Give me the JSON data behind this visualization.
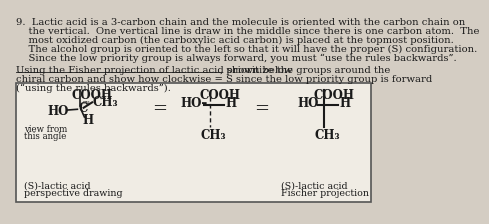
{
  "background_color": "#d4cdc3",
  "box_color": "#f0ece4",
  "text_color": "#1a1a1a",
  "fontsize_body": 7.2,
  "fontsize_mol": 8.5,
  "fontsize_label": 6.8,
  "p1_lines": [
    "9.  Lactic acid is a 3-carbon chain and the molecule is oriented with the carbon chain on",
    "    the vertical.  One vertical line is draw in the middle since there is one carbon atom.  The",
    "    most oxidized carbon (the carboxylic acid carbon) is placed at the topmost position.",
    "    The alcohol group is oriented to the left so that it will have the proper (S) configuration.",
    "    Since the low priority group is always forward, you must “use the rules backwards”."
  ],
  "p2_underlined": "Using the Fisher projection of lactic acid shown below",
  "p2_rest_line1": ", prioritize the groups around the",
  "p2_line2": "chiral carbon and show how clockwise = S since the low priority group is forward",
  "p2_line3": "(“using the rules backwards”).",
  "mol1_cooh": "COOH",
  "mol1_ho": "HO",
  "mol1_ch3": "CH₃",
  "mol1_h": "H",
  "mol1_c": "C",
  "mol1_label1": "(S)-lactic acid",
  "mol1_label2": "perspective drawing",
  "mol1_view1": "view from",
  "mol1_view2": "this angle",
  "mol2_cooh": "COOH",
  "mol2_ho": "HO–",
  "mol2_h": "H",
  "mol2_ch3": "CH₃",
  "mol3_cooh": "COOH",
  "mol3_ho": "HO",
  "mol3_h": "H",
  "mol3_ch3": "CH₃",
  "mol3_label1": "(S)-lactic acid",
  "mol3_label2": "Fischer projection",
  "equals": "="
}
